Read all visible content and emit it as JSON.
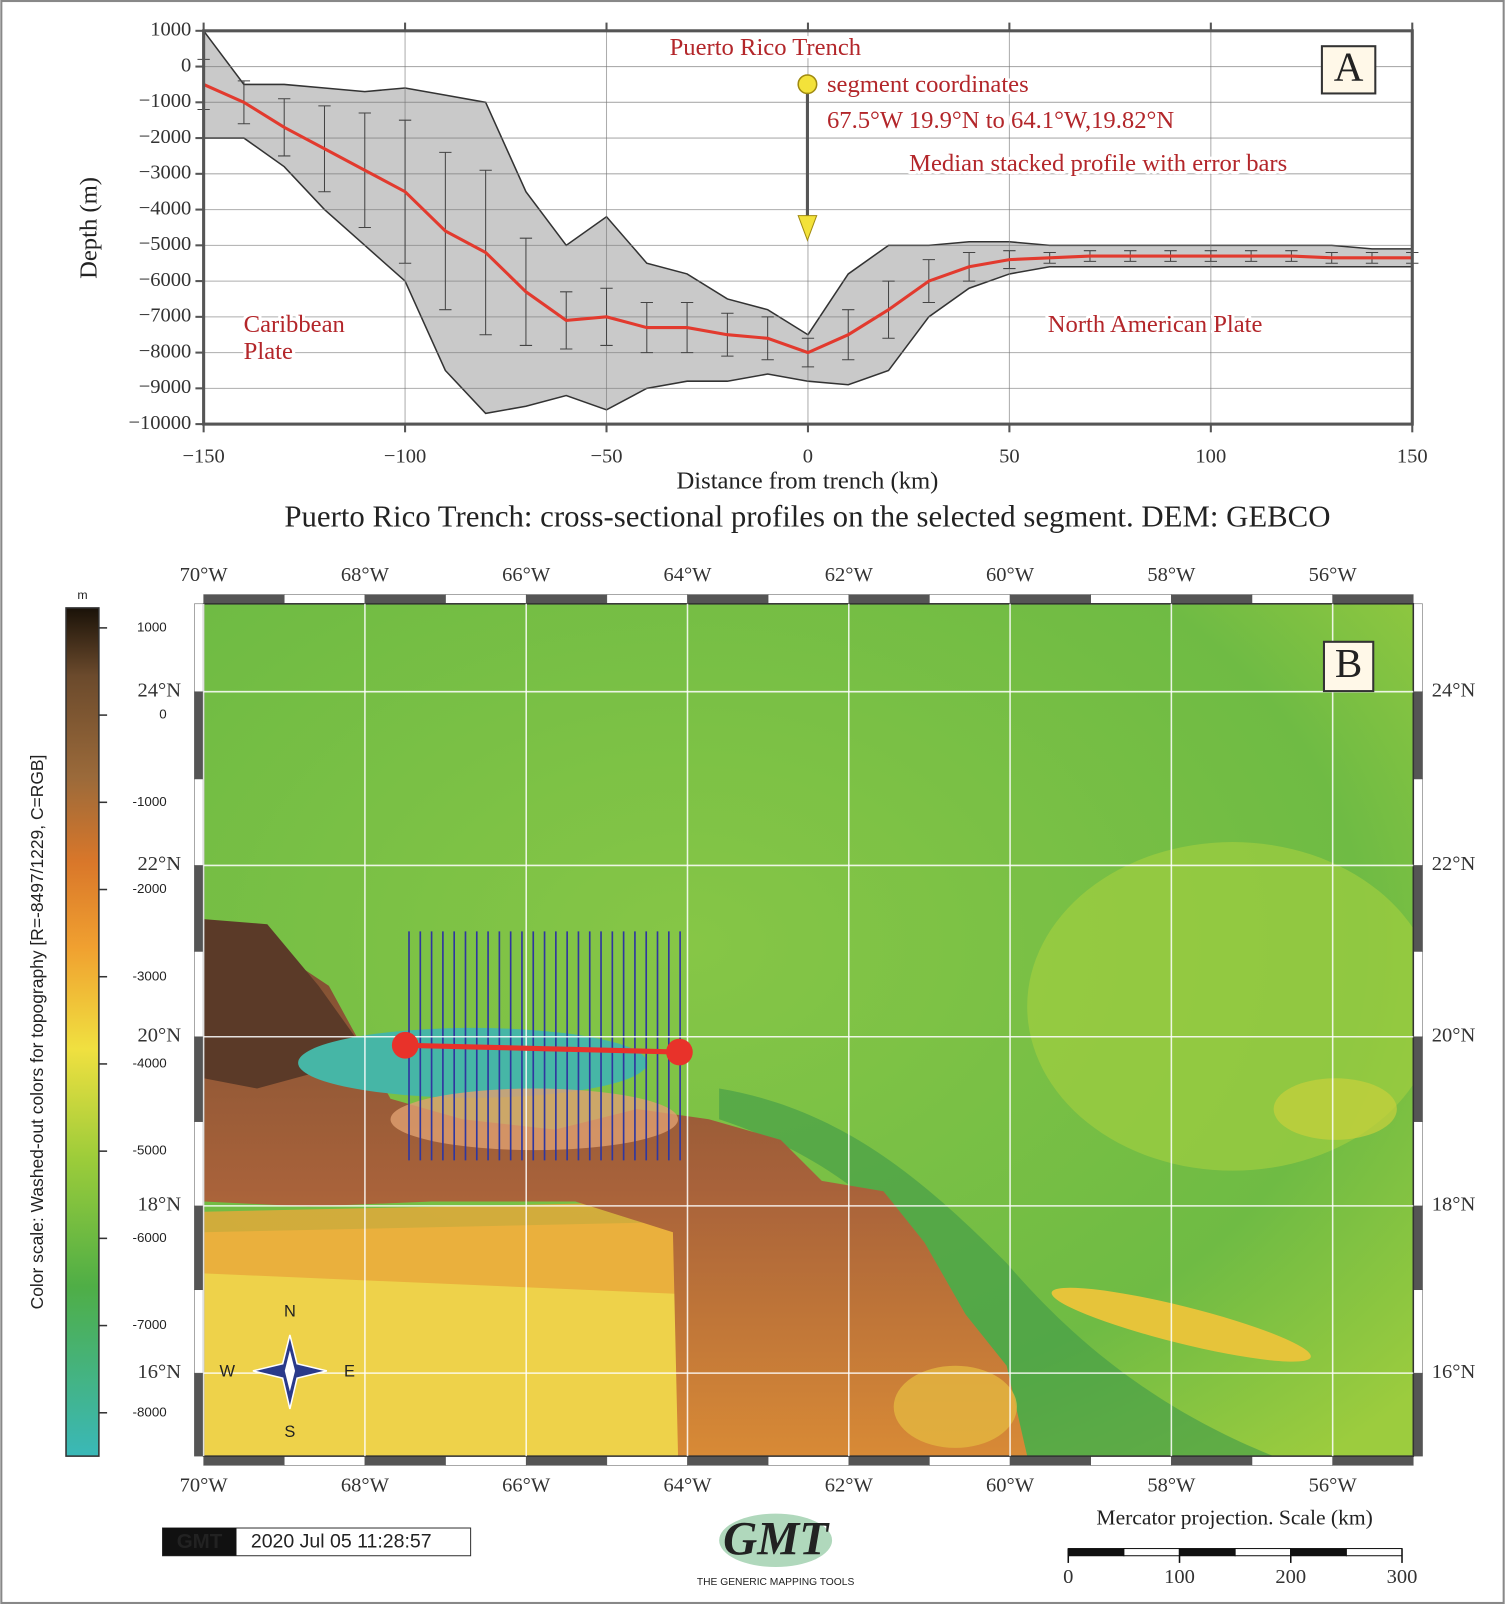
{
  "chart_data": {
    "type": "line",
    "title": "Puerto Rico Trench: cross-sectional profiles on the selected segment. DEM: GEBCO",
    "xlabel": "Distance from trench (km)",
    "ylabel": "Depth (m)",
    "panel_label": "A",
    "xlim": [
      -150,
      150
    ],
    "ylim": [
      -10000,
      1000
    ],
    "grid": true,
    "xticks": [
      {
        "value": -150,
        "label": "−150"
      },
      {
        "value": -100,
        "label": "−100"
      },
      {
        "value": -50,
        "label": "−50"
      },
      0,
      50,
      100,
      150
    ],
    "yticks": [
      1000,
      0,
      {
        "value": -1000,
        "label": "−1000"
      },
      {
        "value": -2000,
        "label": "−2000"
      },
      {
        "value": -3000,
        "label": "−3000"
      },
      {
        "value": -4000,
        "label": "−4000"
      },
      {
        "value": -5000,
        "label": "−5000"
      },
      {
        "value": -6000,
        "label": "−6000"
      },
      {
        "value": -7000,
        "label": "−7000"
      },
      {
        "value": -8000,
        "label": "−8000"
      },
      {
        "value": -9000,
        "label": "−9000"
      },
      {
        "value": -10000,
        "label": "−10000"
      }
    ],
    "x": [
      -150,
      -140,
      -130,
      -120,
      -110,
      -100,
      -90,
      -80,
      -70,
      -60,
      -50,
      -40,
      -30,
      -20,
      -10,
      0,
      10,
      20,
      30,
      40,
      50,
      60,
      70,
      80,
      90,
      100,
      110,
      120,
      130,
      140,
      150
    ],
    "series": [
      {
        "color": "#e23a2e",
        "values": [
          -500,
          -1000,
          -1700,
          -2300,
          -2900,
          -3500,
          -4600,
          -5200,
          -6300,
          -7100,
          -7000,
          -7300,
          -7300,
          -7500,
          -7600,
          -8000,
          -7500,
          -6800,
          -6000,
          -5600,
          -5400,
          -5350,
          -5300,
          -5300,
          -5300,
          -5300,
          -5300,
          -5300,
          -5350,
          -5350,
          -5350
        ],
        "errors": [
          700,
          600,
          800,
          1200,
          1600,
          2000,
          2200,
          2300,
          1500,
          800,
          800,
          700,
          700,
          600,
          600,
          400,
          700,
          800,
          600,
          400,
          250,
          150,
          150,
          150,
          150,
          150,
          150,
          150,
          150,
          150,
          150
        ]
      }
    ],
    "envelope": {
      "color": "#c9c9c9",
      "upper": [
        1000,
        -500,
        -500,
        -600,
        -700,
        -600,
        -800,
        -1000,
        -3500,
        -5000,
        -4200,
        -5500,
        -5800,
        -6500,
        -6800,
        -7500,
        -5800,
        -5000,
        -5000,
        -4900,
        -4900,
        -5000,
        -5000,
        -5000,
        -5000,
        -5000,
        -5000,
        -5000,
        -5000,
        -5100,
        -5100
      ],
      "lower": [
        -2000,
        -2000,
        -2800,
        -4000,
        -5000,
        -6000,
        -8500,
        -9700,
        -9500,
        -9200,
        -9600,
        -9000,
        -8800,
        -8800,
        -8600,
        -8800,
        -8900,
        -8500,
        -7000,
        -6200,
        -5800,
        -5600,
        -5600,
        -5600,
        -5600,
        -5600,
        -5600,
        -5600,
        -5600,
        -5600,
        -5600
      ]
    },
    "annotations": {
      "trench": "Puerto Rico Trench",
      "segment": "segment coordinates",
      "coords": "67.5°W 19.9°N to 64.1°W,19.82°N",
      "median": "Median stacked profile with error bars",
      "caribbean": [
        "Caribbean",
        "Plate"
      ],
      "north_american": "North American Plate"
    }
  },
  "map": {
    "panel_label": "B",
    "lonlim": [
      -70,
      -55
    ],
    "latlim": [
      15,
      25
    ],
    "lon_ticks": [
      {
        "value": -70,
        "label": "70°W"
      },
      {
        "value": -68,
        "label": "68°W"
      },
      {
        "value": -66,
        "label": "66°W"
      },
      {
        "value": -64,
        "label": "64°W"
      },
      {
        "value": -62,
        "label": "62°W"
      },
      {
        "value": -60,
        "label": "60°W"
      },
      {
        "value": -58,
        "label": "58°W"
      },
      {
        "value": -56,
        "label": "56°W"
      }
    ],
    "lat_ticks": [
      {
        "value": 16,
        "label": "16°N"
      },
      {
        "value": 18,
        "label": "18°N"
      },
      {
        "value": 20,
        "label": "20°N"
      },
      {
        "value": 22,
        "label": "22°N"
      },
      {
        "value": 24,
        "label": "24°N"
      }
    ],
    "colorbar": {
      "unit": "m",
      "label": "Color scale: Washed-out colors for topography [R=-8497/1229, C=RGB]",
      "lim": [
        -8497,
        1229
      ],
      "ticks": [
        1000,
        0,
        -1000,
        -2000,
        -3000,
        -4000,
        -5000,
        -6000,
        -7000,
        -8000
      ]
    },
    "segment": {
      "start": [
        -67.5,
        19.9
      ],
      "end": [
        -64.1,
        19.82
      ],
      "color": "#e8322a"
    },
    "compass": {
      "n": "N",
      "e": "E",
      "s": "S",
      "w": "W"
    },
    "logo": "GMT",
    "timestamp": "2020 Jul 05 11:28:57",
    "logo_text": "THE GENERIC MAPPING TOOLS",
    "scale": {
      "title": "Mercator projection. Scale (km)",
      "ticks": [
        0,
        100,
        200,
        300
      ]
    }
  }
}
